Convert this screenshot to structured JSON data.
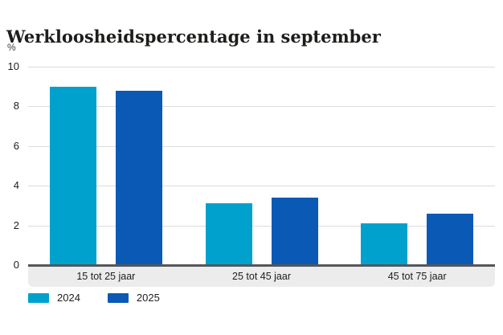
{
  "chart_data": {
    "type": "bar",
    "title": "Werkloosheidspercentage in september",
    "ylabel": "%",
    "xlabel": "",
    "categories": [
      "15 tot 25 jaar",
      "25 tot 45 jaar",
      "45 tot 75 jaar"
    ],
    "series": [
      {
        "name": "2024",
        "color": "#00a1cd",
        "values": [
          9.0,
          3.1,
          2.1
        ]
      },
      {
        "name": "2025",
        "color": "#0a59b5",
        "values": [
          8.8,
          3.4,
          2.6
        ]
      }
    ],
    "ylim": [
      0,
      10
    ],
    "yticks": [
      0,
      2,
      4,
      6,
      8,
      10
    ],
    "grid": "horizontal",
    "gridline_color": "#dcdcdc",
    "baseline_color": "#55565a",
    "category_band_color": "#ececec",
    "legend_position": "bottom-left"
  }
}
